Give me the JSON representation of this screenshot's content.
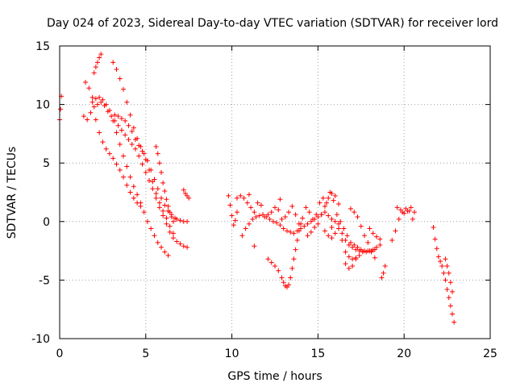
{
  "chart_data": {
    "type": "scatter",
    "title": "Day 024 of 2023, Sidereal Day-to-day VTEC variation (SDTVAR) for receiver lord",
    "xlabel": "GPS time / hours",
    "ylabel": "SDTVAR / TECUs",
    "xlim": [
      0,
      25
    ],
    "ylim": [
      -10,
      15
    ],
    "xticks": [
      0,
      5,
      10,
      15,
      20,
      25
    ],
    "xtick_labels": [
      "0",
      "5",
      "10",
      "15",
      "20",
      "25"
    ],
    "yticks": [
      -10,
      -5,
      0,
      5,
      10,
      15
    ],
    "ytick_labels": [
      "-10",
      "-5",
      "0",
      "5",
      "10",
      "15"
    ],
    "grid": true,
    "marker": "+",
    "color": "#ff0000",
    "series": [
      {
        "name": "start",
        "x": [
          0.0,
          0.05,
          0.1
        ],
        "y": [
          8.7,
          9.6,
          10.7
        ]
      },
      {
        "name": "s1",
        "x": [
          1.4,
          1.6,
          1.8,
          2.0,
          2.2,
          2.4,
          2.6,
          2.8,
          3.0,
          3.2,
          3.4,
          3.6,
          3.8,
          4.0,
          4.2,
          4.4,
          4.6,
          4.8,
          5.0,
          5.2,
          5.4,
          5.6,
          5.8,
          6.0,
          6.2,
          6.4,
          6.6,
          6.8,
          7.0,
          7.2,
          7.4
        ],
        "y": [
          9.0,
          8.7,
          9.3,
          9.8,
          10.0,
          10.2,
          9.9,
          9.4,
          9.0,
          8.6,
          8.2,
          7.8,
          7.4,
          7.0,
          6.6,
          6.2,
          5.6,
          4.9,
          4.2,
          3.5,
          2.8,
          2.0,
          1.2,
          0.5,
          -0.2,
          -0.9,
          -1.4,
          -1.7,
          -1.9,
          -2.1,
          -2.2
        ]
      },
      {
        "name": "s2",
        "x": [
          1.9,
          2.1,
          2.3,
          2.5,
          2.7,
          2.9,
          3.1,
          3.3,
          3.5,
          3.7,
          3.9,
          4.1,
          4.3,
          4.5,
          4.7,
          4.9,
          5.1,
          5.3,
          5.5,
          5.7,
          5.9,
          6.1,
          6.3
        ],
        "y": [
          10.2,
          10.5,
          10.6,
          10.4,
          10.0,
          9.5,
          8.6,
          7.6,
          6.6,
          5.6,
          4.7,
          3.8,
          3.0,
          2.3,
          1.6,
          0.8,
          0.0,
          -0.6,
          -1.2,
          -1.8,
          -2.2,
          -2.6,
          -2.9
        ]
      },
      {
        "name": "s3",
        "x": [
          1.5,
          1.7,
          1.9,
          2.1,
          2.3,
          2.5,
          2.7,
          2.9,
          3.1,
          3.3,
          3.5,
          3.7,
          3.9,
          4.1,
          4.3,
          4.5,
          4.7
        ],
        "y": [
          11.9,
          11.4,
          10.6,
          8.7,
          7.6,
          6.8,
          6.2,
          5.8,
          5.4,
          4.9,
          4.4,
          3.8,
          3.1,
          2.5,
          2.0,
          1.6,
          1.3
        ]
      },
      {
        "name": "s4",
        "x": [
          2.0,
          2.1,
          2.2,
          2.3,
          2.4
        ],
        "y": [
          12.7,
          13.2,
          13.6,
          14.0,
          14.3
        ]
      },
      {
        "name": "s5",
        "x": [
          3.1,
          3.3,
          3.5,
          3.7,
          3.9,
          4.1,
          4.3,
          4.5,
          4.7,
          4.9,
          5.1,
          5.3,
          5.5,
          5.7,
          5.9,
          6.1,
          6.3,
          6.5,
          6.7
        ],
        "y": [
          13.6,
          13.0,
          12.2,
          11.3,
          10.2,
          9.1,
          8.0,
          7.1,
          6.4,
          5.8,
          5.2,
          4.4,
          3.6,
          2.8,
          2.0,
          1.4,
          0.9,
          0.6,
          0.3
        ]
      },
      {
        "name": "s6",
        "x": [
          3.2,
          3.4,
          3.6,
          3.8,
          4.0,
          4.2,
          4.4,
          4.6,
          4.8,
          5.0,
          5.2,
          5.4,
          5.6,
          5.8,
          6.0,
          6.2,
          6.4,
          6.6
        ],
        "y": [
          9.1,
          9.0,
          8.8,
          8.6,
          8.2,
          7.7,
          7.0,
          6.5,
          6.0,
          5.3,
          4.4,
          3.4,
          2.4,
          1.6,
          0.9,
          0.3,
          -0.4,
          -1.0
        ]
      },
      {
        "name": "s7",
        "x": [
          5.6,
          5.7,
          5.8,
          5.9,
          6.0,
          6.1,
          6.2,
          6.3,
          6.4,
          6.5,
          6.6
        ],
        "y": [
          6.4,
          5.8,
          5.0,
          4.2,
          3.3,
          2.6,
          1.9,
          1.3,
          0.8,
          0.4,
          0.0
        ]
      },
      {
        "name": "s8",
        "x": [
          7.2,
          7.3,
          7.4,
          7.5
        ],
        "y": [
          2.7,
          2.4,
          2.2,
          2.0
        ]
      },
      {
        "name": "s9",
        "x": [
          6.8,
          7.0,
          7.2,
          7.4
        ],
        "y": [
          0.2,
          0.1,
          0.0,
          0.0
        ]
      },
      {
        "name": "s10",
        "x": [
          9.8,
          9.9,
          10.0,
          10.1,
          10.2,
          10.3
        ],
        "y": [
          2.2,
          1.4,
          0.5,
          -0.3,
          0.1,
          0.8
        ]
      },
      {
        "name": "s11",
        "x": [
          10.3,
          10.5,
          10.7,
          10.9,
          11.1,
          11.3,
          11.5,
          11.7,
          11.9,
          12.1,
          12.3,
          12.5,
          12.7,
          12.9,
          13.1,
          13.3,
          13.5,
          13.7,
          13.9,
          14.1,
          14.3,
          14.5,
          14.7,
          14.9,
          15.1,
          15.3,
          15.5,
          15.7,
          15.9,
          16.1,
          16.3,
          16.5,
          16.7,
          16.9,
          17.1,
          17.3,
          17.5,
          17.7,
          17.9,
          18.1,
          18.3
        ],
        "y": [
          2.0,
          2.2,
          2.0,
          1.6,
          1.2,
          0.8,
          1.6,
          1.4,
          0.4,
          0.6,
          0.8,
          1.2,
          1.0,
          0.2,
          0.4,
          0.8,
          1.3,
          0.6,
          -0.2,
          0.3,
          1.2,
          0.8,
          0.2,
          0.6,
          1.6,
          2.0,
          1.6,
          2.5,
          1.8,
          0.6,
          0.0,
          -0.6,
          -1.2,
          -1.8,
          -2.0,
          -2.2,
          -2.4,
          -2.5,
          -2.5,
          -2.5,
          -2.4
        ]
      },
      {
        "name": "s12",
        "x": [
          10.6,
          10.8,
          11.0,
          11.2,
          11.4,
          11.6,
          11.8,
          12.0,
          12.2,
          12.4,
          12.6,
          12.8,
          13.0,
          13.2,
          13.4,
          13.6,
          13.8,
          14.0,
          14.2,
          14.4,
          14.6,
          14.8,
          15.0,
          15.2,
          15.4,
          15.6,
          15.8,
          16.0
        ],
        "y": [
          -1.2,
          -0.6,
          -0.2,
          0.2,
          0.4,
          0.5,
          0.6,
          0.4,
          0.2,
          0.0,
          -0.1,
          -0.3,
          -0.6,
          -0.8,
          -0.9,
          -1.0,
          -0.8,
          -0.6,
          -0.4,
          -0.2,
          0.0,
          0.2,
          0.4,
          0.6,
          0.8,
          0.5,
          0.2,
          0.0
        ]
      },
      {
        "name": "s13",
        "x": [
          12.1,
          12.3,
          12.5,
          12.7,
          12.9,
          13.0,
          13.1,
          13.2,
          13.3,
          13.4,
          13.5,
          13.6,
          13.7,
          13.8,
          13.9,
          14.0
        ],
        "y": [
          -3.2,
          -3.5,
          -3.8,
          -4.2,
          -4.8,
          -5.2,
          -5.5,
          -5.6,
          -5.4,
          -4.8,
          -4.0,
          -3.2,
          -2.4,
          -1.6,
          -0.8,
          -0.2
        ]
      },
      {
        "name": "s14",
        "x": [
          14.4,
          14.6,
          14.8,
          15.0,
          15.2,
          15.4,
          15.6,
          15.8,
          16.0,
          16.2
        ],
        "y": [
          -1.2,
          -0.9,
          -0.5,
          -0.2,
          0.6,
          1.3,
          2.0,
          2.4,
          2.2,
          1.5
        ]
      },
      {
        "name": "s15",
        "x": [
          15.4,
          15.6,
          15.8,
          16.0,
          16.2,
          16.4,
          16.6,
          16.8,
          17.0,
          17.2,
          17.4,
          17.6,
          17.8,
          18.0,
          18.2,
          18.4,
          18.6
        ],
        "y": [
          -0.8,
          -1.2,
          -1.4,
          -1.0,
          -0.6,
          -1.0,
          -1.6,
          -2.0,
          -2.2,
          -2.4,
          -2.5,
          -2.6,
          -2.6,
          -2.5,
          -2.4,
          -2.2,
          -2.0
        ]
      },
      {
        "name": "s16",
        "x": [
          16.2,
          16.4,
          16.6,
          16.8,
          17.0,
          17.2,
          17.4,
          17.6
        ],
        "y": [
          -0.2,
          -1.6,
          -2.6,
          -3.0,
          -3.2,
          -3.1,
          -2.9,
          -2.6
        ]
      },
      {
        "name": "s17",
        "x": [
          16.6,
          16.8,
          17.0,
          17.2
        ],
        "y": [
          -3.6,
          -4.0,
          -3.8,
          -3.2
        ]
      },
      {
        "name": "s18",
        "x": [
          16.9,
          17.1,
          17.3,
          17.5,
          17.7,
          17.9,
          18.1,
          18.3
        ],
        "y": [
          1.1,
          0.8,
          0.4,
          -0.4,
          -1.2,
          -1.8,
          -2.6,
          -3.1
        ]
      },
      {
        "name": "s19",
        "x": [
          18.0,
          18.2,
          18.4,
          18.6
        ],
        "y": [
          -0.6,
          -1.0,
          -1.3,
          -1.5
        ]
      },
      {
        "name": "s20",
        "x": [
          18.7,
          18.8,
          18.9
        ],
        "y": [
          -4.8,
          -4.4,
          -3.8
        ]
      },
      {
        "name": "s21",
        "x": [
          19.3,
          19.5,
          19.7,
          19.9,
          20.1,
          20.3,
          20.5
        ],
        "y": [
          -1.6,
          -0.8,
          0.2,
          0.8,
          1.1,
          0.9,
          0.2
        ]
      },
      {
        "name": "s22",
        "x": [
          19.6,
          19.8,
          20.0,
          20.2,
          20.4,
          20.6
        ],
        "y": [
          1.2,
          1.0,
          0.7,
          0.9,
          1.2,
          0.8
        ]
      },
      {
        "name": "s23",
        "x": [
          21.7,
          21.8,
          21.9,
          22.0,
          22.1,
          22.2,
          22.3,
          22.4,
          22.5,
          22.6,
          22.7,
          22.8,
          22.9
        ],
        "y": [
          -0.5,
          -1.5,
          -2.3,
          -3.0,
          -3.4,
          -3.8,
          -4.4,
          -5.0,
          -5.8,
          -6.5,
          -7.2,
          -7.9,
          -8.6
        ]
      },
      {
        "name": "s24",
        "x": [
          22.4,
          22.5,
          22.6,
          22.7,
          22.8
        ],
        "y": [
          -3.2,
          -3.8,
          -4.4,
          -5.2,
          -6.0
        ]
      },
      {
        "name": "outliers",
        "x": [
          11.3,
          11.0,
          12.8,
          15.8
        ],
        "y": [
          -2.1,
          2.3,
          1.9,
          -0.5
        ]
      }
    ]
  }
}
